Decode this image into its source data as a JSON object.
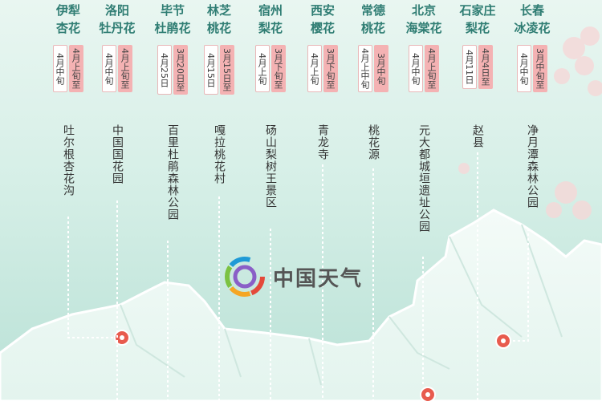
{
  "logo": {
    "text": "中国天气"
  },
  "columns": [
    {
      "city": "伊犁",
      "flower": "杏花",
      "dates": [
        "4月中旬",
        "4月上旬至"
      ],
      "place": "吐尔根杏花沟"
    },
    {
      "city": "洛阳",
      "flower": "牡丹花",
      "dates": [
        "4月中旬",
        "4月上旬至"
      ],
      "place": "中国国花园"
    },
    {
      "city": "毕节",
      "flower": "杜鹃花",
      "dates": [
        "4月25日",
        "3月20日至"
      ],
      "place": "百里杜鹃森林公园"
    },
    {
      "city": "林芝",
      "flower": "桃花",
      "dates": [
        "4月15日",
        "3月15日至"
      ],
      "place": "嘎拉桃花村"
    },
    {
      "city": "宿州",
      "flower": "梨花",
      "dates": [
        "4月上旬",
        "3月下旬至"
      ],
      "place": "砀山梨树王景区"
    },
    {
      "city": "西安",
      "flower": "樱花",
      "dates": [
        "4月上旬",
        "3月下旬至"
      ],
      "place": "青龙寺"
    },
    {
      "city": "常德",
      "flower": "桃花",
      "dates": [
        "4月上中旬",
        "3月中旬"
      ],
      "place": "桃花源"
    },
    {
      "city": "北京",
      "flower": "海棠花",
      "dates": [
        "4月中旬",
        "4月上旬至"
      ],
      "place": "元大都城垣遗址公园"
    },
    {
      "city": "石家庄",
      "flower": "梨花",
      "dates": [
        "4月11日",
        "4月4日至"
      ],
      "place": "赵县"
    },
    {
      "city": "长春",
      "flower": "冰凌花",
      "dates": [
        "4月中旬",
        "3月中旬至"
      ],
      "place": "净月潭森林公园"
    }
  ]
}
